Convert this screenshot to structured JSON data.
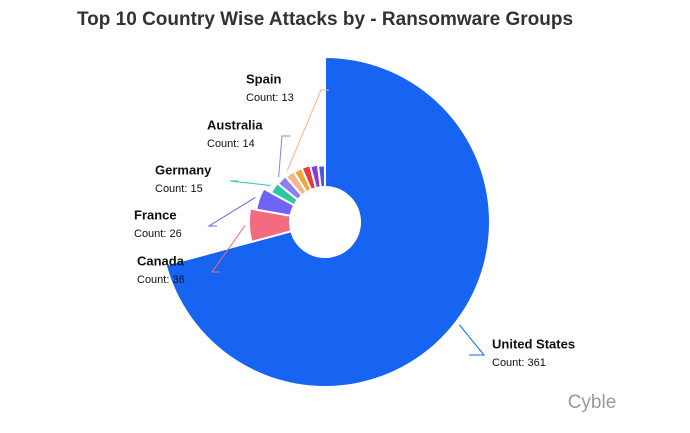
{
  "chart_data": {
    "type": "pie",
    "rose": true,
    "title": "Top 10 Country Wise Attacks by - Ransomware Groups",
    "watermark": "Cyble",
    "categories": [
      "United States",
      "Canada",
      "France",
      "Germany",
      "Australia",
      "Spain",
      null,
      null,
      null,
      null
    ],
    "values": [
      361,
      36,
      26,
      15,
      14,
      13,
      12,
      12,
      11,
      10
    ],
    "value_labels": [
      "Count: 361",
      "Count: 36",
      "Count: 26",
      "Count: 15",
      "Count: 14",
      "Count: 13",
      null,
      null,
      null,
      null
    ],
    "colors": [
      "#1763f2",
      "#f26b80",
      "#6e63f2",
      "#2fc6a6",
      "#8d7df0",
      "#f5b58a",
      "#f0a63b",
      "#e33b3b",
      "#8a3bd6",
      "#4a5ad8"
    ]
  }
}
